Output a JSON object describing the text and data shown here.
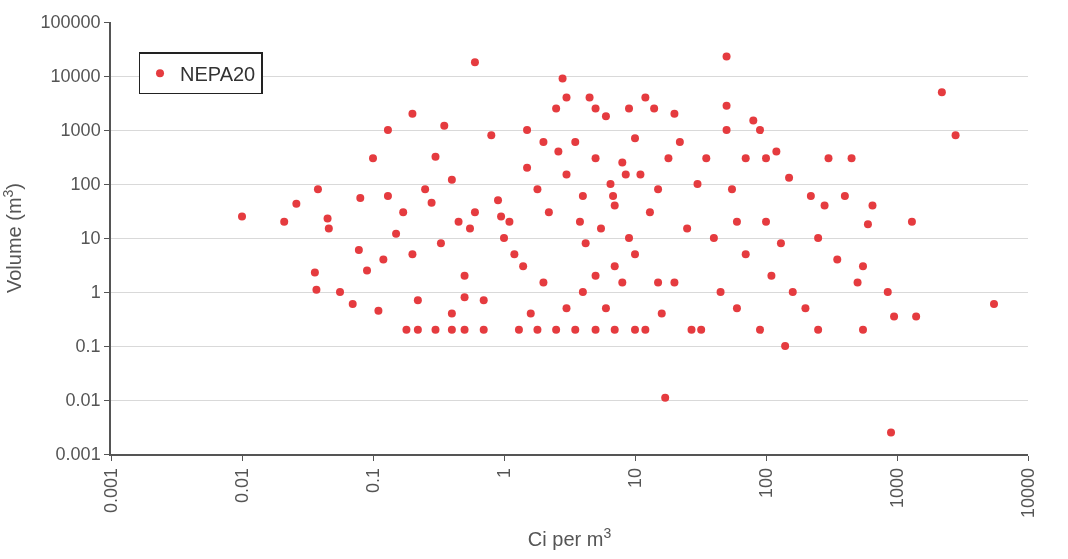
{
  "chart_data": {
    "type": "scatter",
    "xlabel": "Ci per m$^{3}$",
    "ylabel": "Volume (m$^{3}$)",
    "log": "xy",
    "grid": "y",
    "legend": "top left",
    "marker": "circle",
    "xlim": [
      0.001,
      10000
    ],
    "xticks": [
      0.001,
      0.01,
      0.1,
      1,
      10,
      100,
      1000,
      10000
    ],
    "ylim": [
      0.001,
      100000
    ],
    "yticks": [
      0.001,
      0.01,
      0.1,
      1,
      10,
      100,
      1000,
      10000,
      100000
    ],
    "series": [
      {
        "name": "NEPA20",
        "color": "#e53b3f",
        "x": [
          0.01,
          0.021,
          0.026,
          0.038,
          0.036,
          0.037,
          0.045,
          0.046,
          0.056,
          0.07,
          0.08,
          0.078,
          0.1,
          0.13,
          0.11,
          0.2,
          0.35,
          0.09,
          0.12,
          0.15,
          0.17,
          0.13,
          0.2,
          0.22,
          0.25,
          0.3,
          0.28,
          0.33,
          0.4,
          0.45,
          0.5,
          0.55,
          0.6,
          0.6,
          0.7,
          0.5,
          0.4,
          0.18,
          0.22,
          0.3,
          0.4,
          0.5,
          0.7,
          1.3,
          1.8,
          2.5,
          3.5,
          5,
          7,
          10,
          12,
          27,
          32,
          0.8,
          0.9,
          1,
          1.2,
          1.5,
          1.5,
          1.8,
          2,
          2.2,
          2.5,
          2.8,
          3,
          3,
          3.5,
          4,
          4.5,
          5,
          5,
          5.5,
          6,
          6.5,
          7,
          8,
          9,
          10,
          12,
          14,
          11,
          15,
          13,
          9,
          7,
          5,
          4,
          3,
          2,
          1.6,
          6,
          8,
          10,
          15,
          18,
          16,
          17,
          20,
          22,
          25,
          30,
          20,
          35,
          40,
          45,
          50,
          50,
          50,
          55,
          60,
          70,
          80,
          90,
          100,
          90,
          120,
          130,
          140,
          150,
          160,
          200,
          220,
          250,
          250,
          280,
          300,
          350,
          400,
          450,
          500,
          550,
          600,
          550,
          650,
          850,
          900,
          950,
          1300,
          1400,
          2200,
          2800,
          5500,
          100,
          110,
          60,
          70,
          1.1,
          2.6,
          4.2,
          6.8,
          8.5,
          3.8,
          1.4,
          0.95
        ],
        "values": [
          25,
          20,
          43,
          80,
          2.3,
          1.1,
          23,
          15,
          1,
          0.6,
          55,
          6,
          300,
          1000,
          0.45,
          2000,
          1200,
          2.5,
          4,
          12,
          30,
          60,
          5,
          0.7,
          80,
          320,
          45,
          8,
          120,
          20,
          2,
          15,
          18000,
          30,
          0.7,
          0.8,
          0.4,
          0.2,
          0.2,
          0.2,
          0.2,
          0.2,
          0.2,
          0.2,
          0.2,
          0.2,
          0.2,
          0.2,
          0.2,
          0.2,
          0.2,
          0.2,
          0.2,
          800,
          50,
          10,
          5,
          1000,
          200,
          80,
          600,
          30,
          2500,
          9000,
          4000,
          150,
          600,
          60,
          4000,
          2500,
          300,
          15,
          1800,
          100,
          40,
          250,
          2500,
          700,
          4000,
          2500,
          150,
          80,
          30,
          10,
          3,
          2,
          1,
          0.5,
          1.5,
          0.4,
          0.5,
          1.5,
          5,
          1.5,
          300,
          0.4,
          0.011,
          1.5,
          600,
          15,
          100,
          2000,
          300,
          10,
          1,
          1000,
          23000,
          2800,
          80,
          20,
          5,
          1500,
          0.2,
          300,
          1000,
          400,
          8,
          0.1,
          130,
          1,
          0.5,
          60,
          10,
          0.2,
          40,
          300,
          4,
          60,
          300,
          1.5,
          0.2,
          18,
          3,
          40,
          1,
          0.0025,
          0.35,
          20,
          0.35,
          5000,
          800,
          0.6,
          20,
          2,
          0.5,
          300,
          20,
          400,
          8,
          60,
          150,
          20,
          3,
          25
        ]
      }
    ]
  }
}
